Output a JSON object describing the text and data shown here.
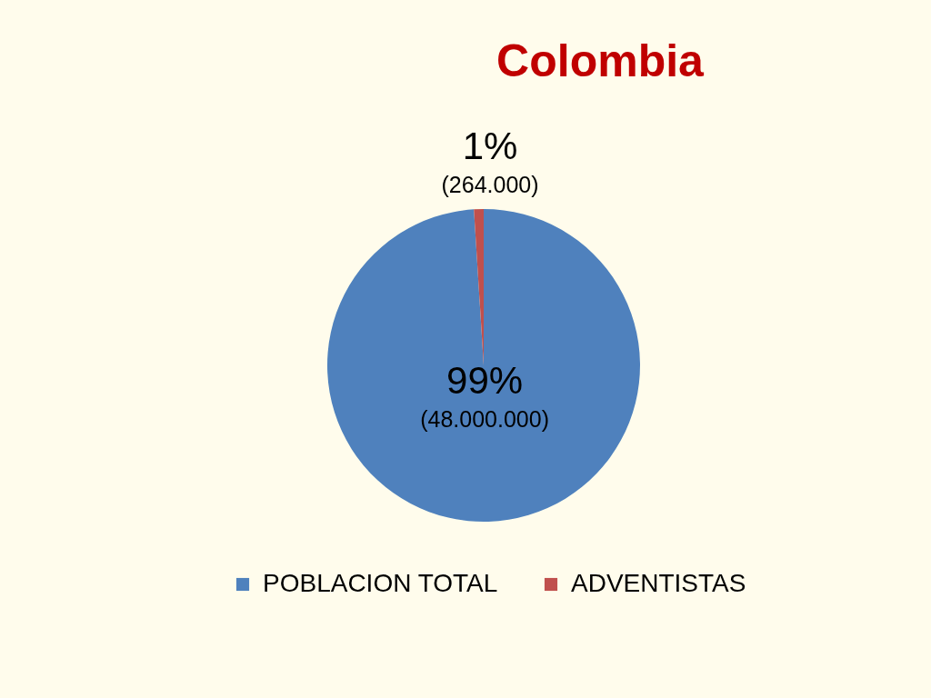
{
  "chart_data": {
    "type": "pie",
    "title": "Colombia",
    "categories": [
      "POBLACION TOTAL",
      "ADVENTISTAS"
    ],
    "values": [
      99,
      1
    ],
    "value_labels": [
      "99%\n(48.000.000)",
      "1%\n(264.000)"
    ],
    "colors": [
      "#4f81bd",
      "#c0504d"
    ],
    "legend": "bottom"
  }
}
